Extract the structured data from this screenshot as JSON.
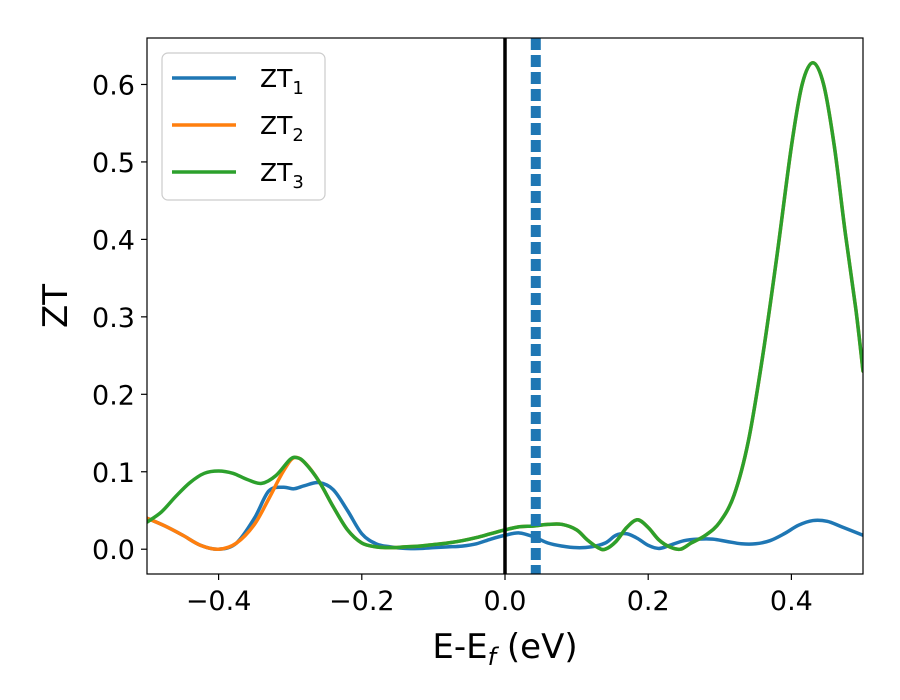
{
  "chart_data": {
    "type": "line",
    "title": "",
    "xlabel": "E-E",
    "xlabel_sub": "f",
    "xlabel_unit": " (eV)",
    "ylabel": "ZT",
    "xlim": [
      -0.5,
      0.5
    ],
    "ylim": [
      -0.032,
      0.66
    ],
    "xticks": [
      -0.4,
      -0.2,
      0.0,
      0.2,
      0.4
    ],
    "xtick_labels": [
      "−0.4",
      "−0.2",
      "0.0",
      "0.2",
      "0.4"
    ],
    "yticks": [
      0.0,
      0.1,
      0.2,
      0.3,
      0.4,
      0.5,
      0.6
    ],
    "ytick_labels": [
      "0.0",
      "0.1",
      "0.2",
      "0.3",
      "0.4",
      "0.5",
      "0.6"
    ],
    "grid": false,
    "legend_position": "top-left",
    "vlines": [
      {
        "x": 0.0,
        "style": "solid",
        "color": "#000000"
      },
      {
        "x": 0.043,
        "style": "dashed",
        "color": "#1f77b4"
      }
    ],
    "series": [
      {
        "name": "ZT",
        "name_sub": "1",
        "color": "#1f77b4",
        "points": [
          [
            -0.5,
            0.04
          ],
          [
            -0.475,
            0.03
          ],
          [
            -0.45,
            0.018
          ],
          [
            -0.425,
            0.005
          ],
          [
            -0.4,
            0.0
          ],
          [
            -0.375,
            0.008
          ],
          [
            -0.35,
            0.04
          ],
          [
            -0.33,
            0.075
          ],
          [
            -0.31,
            0.08
          ],
          [
            -0.295,
            0.078
          ],
          [
            -0.28,
            0.082
          ],
          [
            -0.26,
            0.086
          ],
          [
            -0.24,
            0.077
          ],
          [
            -0.22,
            0.05
          ],
          [
            -0.2,
            0.02
          ],
          [
            -0.18,
            0.007
          ],
          [
            -0.16,
            0.003
          ],
          [
            -0.14,
            0.001
          ],
          [
            -0.12,
            0.001
          ],
          [
            -0.1,
            0.002
          ],
          [
            -0.08,
            0.003
          ],
          [
            -0.06,
            0.004
          ],
          [
            -0.04,
            0.007
          ],
          [
            -0.02,
            0.013
          ],
          [
            0.0,
            0.018
          ],
          [
            0.02,
            0.021
          ],
          [
            0.04,
            0.016
          ],
          [
            0.06,
            0.008
          ],
          [
            0.08,
            0.004
          ],
          [
            0.1,
            0.002
          ],
          [
            0.12,
            0.003
          ],
          [
            0.14,
            0.008
          ],
          [
            0.155,
            0.018
          ],
          [
            0.17,
            0.02
          ],
          [
            0.185,
            0.014
          ],
          [
            0.2,
            0.005
          ],
          [
            0.215,
            0.001
          ],
          [
            0.23,
            0.005
          ],
          [
            0.25,
            0.011
          ],
          [
            0.27,
            0.013
          ],
          [
            0.29,
            0.013
          ],
          [
            0.31,
            0.01
          ],
          [
            0.33,
            0.007
          ],
          [
            0.35,
            0.007
          ],
          [
            0.37,
            0.011
          ],
          [
            0.39,
            0.02
          ],
          [
            0.41,
            0.031
          ],
          [
            0.43,
            0.037
          ],
          [
            0.45,
            0.036
          ],
          [
            0.47,
            0.029
          ],
          [
            0.5,
            0.018
          ]
        ]
      },
      {
        "name": "ZT",
        "name_sub": "2",
        "color": "#ff7f0e",
        "points": [
          [
            -0.5,
            0.04
          ],
          [
            -0.475,
            0.03
          ],
          [
            -0.45,
            0.018
          ],
          [
            -0.425,
            0.005
          ],
          [
            -0.4,
            0.0
          ],
          [
            -0.375,
            0.008
          ],
          [
            -0.35,
            0.032
          ],
          [
            -0.33,
            0.065
          ],
          [
            -0.31,
            0.1
          ],
          [
            -0.295,
            0.118
          ],
          [
            -0.28,
            0.112
          ],
          [
            -0.26,
            0.088
          ],
          [
            -0.24,
            0.055
          ],
          [
            -0.22,
            0.025
          ],
          [
            -0.2,
            0.008
          ],
          [
            -0.18,
            0.003
          ],
          [
            -0.16,
            0.002
          ],
          [
            -0.14,
            0.003
          ],
          [
            -0.12,
            0.004
          ],
          [
            -0.1,
            0.006
          ],
          [
            -0.08,
            0.008
          ],
          [
            -0.06,
            0.011
          ],
          [
            -0.04,
            0.015
          ],
          [
            -0.02,
            0.02
          ],
          [
            0.0,
            0.025
          ],
          [
            0.02,
            0.029
          ],
          [
            0.04,
            0.03
          ],
          [
            0.06,
            0.032
          ],
          [
            0.08,
            0.032
          ],
          [
            0.1,
            0.025
          ],
          [
            0.115,
            0.012
          ],
          [
            0.13,
            0.002
          ],
          [
            0.14,
            0.0
          ],
          [
            0.155,
            0.01
          ],
          [
            0.17,
            0.028
          ],
          [
            0.185,
            0.038
          ],
          [
            0.2,
            0.028
          ],
          [
            0.215,
            0.012
          ],
          [
            0.23,
            0.003
          ],
          [
            0.245,
            0.0
          ],
          [
            0.26,
            0.008
          ],
          [
            0.28,
            0.018
          ],
          [
            0.3,
            0.035
          ],
          [
            0.32,
            0.07
          ],
          [
            0.34,
            0.14
          ],
          [
            0.36,
            0.25
          ],
          [
            0.38,
            0.38
          ],
          [
            0.4,
            0.52
          ],
          [
            0.415,
            0.6
          ],
          [
            0.43,
            0.628
          ],
          [
            0.445,
            0.6
          ],
          [
            0.46,
            0.52
          ],
          [
            0.475,
            0.41
          ],
          [
            0.49,
            0.31
          ],
          [
            0.5,
            0.23
          ]
        ]
      },
      {
        "name": "ZT",
        "name_sub": "3",
        "color": "#2ca02c",
        "points": [
          [
            -0.5,
            0.035
          ],
          [
            -0.48,
            0.048
          ],
          [
            -0.46,
            0.068
          ],
          [
            -0.44,
            0.086
          ],
          [
            -0.42,
            0.098
          ],
          [
            -0.4,
            0.101
          ],
          [
            -0.38,
            0.098
          ],
          [
            -0.36,
            0.09
          ],
          [
            -0.34,
            0.085
          ],
          [
            -0.32,
            0.095
          ],
          [
            -0.3,
            0.116
          ],
          [
            -0.29,
            0.118
          ],
          [
            -0.28,
            0.112
          ],
          [
            -0.26,
            0.088
          ],
          [
            -0.24,
            0.055
          ],
          [
            -0.22,
            0.025
          ],
          [
            -0.2,
            0.008
          ],
          [
            -0.18,
            0.003
          ],
          [
            -0.16,
            0.002
          ],
          [
            -0.14,
            0.003
          ],
          [
            -0.12,
            0.004
          ],
          [
            -0.1,
            0.006
          ],
          [
            -0.08,
            0.008
          ],
          [
            -0.06,
            0.011
          ],
          [
            -0.04,
            0.015
          ],
          [
            -0.02,
            0.02
          ],
          [
            0.0,
            0.025
          ],
          [
            0.02,
            0.029
          ],
          [
            0.04,
            0.03
          ],
          [
            0.06,
            0.032
          ],
          [
            0.08,
            0.032
          ],
          [
            0.1,
            0.025
          ],
          [
            0.115,
            0.012
          ],
          [
            0.13,
            0.002
          ],
          [
            0.14,
            0.0
          ],
          [
            0.155,
            0.01
          ],
          [
            0.17,
            0.028
          ],
          [
            0.185,
            0.038
          ],
          [
            0.2,
            0.028
          ],
          [
            0.215,
            0.012
          ],
          [
            0.23,
            0.003
          ],
          [
            0.245,
            0.0
          ],
          [
            0.26,
            0.008
          ],
          [
            0.28,
            0.018
          ],
          [
            0.3,
            0.035
          ],
          [
            0.32,
            0.07
          ],
          [
            0.34,
            0.14
          ],
          [
            0.36,
            0.25
          ],
          [
            0.38,
            0.38
          ],
          [
            0.4,
            0.52
          ],
          [
            0.415,
            0.6
          ],
          [
            0.43,
            0.628
          ],
          [
            0.445,
            0.6
          ],
          [
            0.46,
            0.52
          ],
          [
            0.475,
            0.41
          ],
          [
            0.49,
            0.31
          ],
          [
            0.5,
            0.23
          ]
        ]
      }
    ]
  }
}
